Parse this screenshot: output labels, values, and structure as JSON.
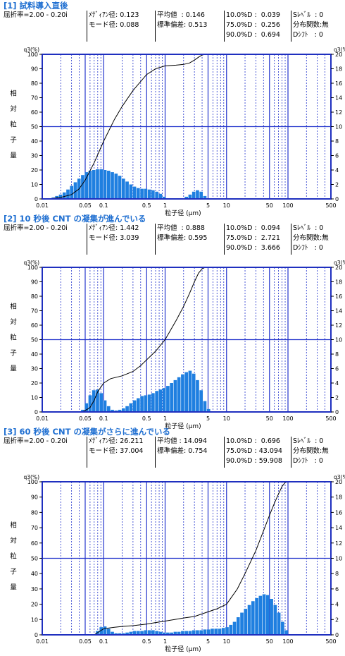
{
  "panels": [
    {
      "title": "[1] 試料導入直後",
      "info": {
        "refractive": "屈折率=2.00 - 0.20i",
        "median": "ﾒﾃﾞｨｱﾝ径: 0.123",
        "mode": "モード径: 0.088",
        "mean": "平均値  : 0.146",
        "stdev": "標準偏差: 0.513",
        "d10": "10.0%D :  0.039",
        "d75": "75.0%D :  0.256",
        "d90": "90.0%D :  0.694",
        "slevel": "Sﾚﾍﾞﾙ  : 0",
        "dist": "分布関数:無",
        "dshift": "Dｼﾌﾄ   : 0"
      }
    },
    {
      "title": "[2] 10 秒後   CNT の凝集が進んでいる",
      "info": {
        "refractive": "屈折率=2.00 - 0.20i",
        "median": "ﾒﾃﾞｨｱﾝ径: 1.442",
        "mode": "モード径: 3.039",
        "mean": "平均値  : 0.888",
        "stdev": "標準偏差: 0.595",
        "d10": "10.0%D :  0.094",
        "d75": "75.0%D :  2.721",
        "d90": "90.0%D :  3.666",
        "slevel": "Sﾚﾍﾞﾙ  : 0",
        "dist": "分布関数:無",
        "dshift": "Dｼﾌﾄ   : 0"
      }
    },
    {
      "title": "[3] 60 秒後   CNT の凝集がさらに進んでいる",
      "info": {
        "refractive": "屈折率=2.00 - 0.20i",
        "median": "ﾒﾃﾞｨｱﾝ径: 26.211",
        "mode": "モード径: 37.004",
        "mean": "平均値 : 14.094",
        "stdev": "標準偏差: 0.754",
        "d10": "10.0%D :  0.696",
        "d75": "75.0%D : 43.094",
        "d90": "90.0%D : 59.908",
        "slevel": "Sﾚﾍﾞﾙ  : 0",
        "dist": "分布関数:無",
        "dshift": "Dｼﾌﾄ   : 0"
      }
    }
  ],
  "colors": {
    "axis": "#1f2fbf",
    "bar": "#1f7fe0",
    "grid": "#2233cc",
    "title": "#1f6fd1"
  },
  "chart_data": [
    {
      "type": "bar",
      "left_label": "q3(%)",
      "right_label": "q3(%)",
      "ylabel": "相対粒子量",
      "xlabel": "粒子径 (μm)",
      "xscale": "log",
      "xlim": [
        0.01,
        500
      ],
      "ylim_left": [
        0,
        100
      ],
      "ylim_right": [
        0,
        20
      ],
      "x_ticks": [
        "0.01",
        "0.05",
        "0.1",
        "0.5",
        "1",
        "5",
        "10",
        "50",
        "100",
        "500"
      ],
      "y_ticks_left": [
        "0",
        "10",
        "20",
        "30",
        "40",
        "50",
        "60",
        "70",
        "80",
        "90",
        "100"
      ],
      "y_ticks_right": [
        "0",
        "2",
        "4",
        "6",
        "8",
        "10",
        "12",
        "14",
        "16",
        "18",
        "20"
      ],
      "bars": {
        "x": [
          0.0132,
          0.0152,
          0.0174,
          0.02,
          0.023,
          0.0264,
          0.0303,
          0.0348,
          0.04,
          0.0459,
          0.0528,
          0.0606,
          0.0696,
          0.08,
          0.0919,
          0.1056,
          0.1213,
          0.1394,
          0.1601,
          0.184,
          0.2113,
          0.2428,
          0.2789,
          0.3204,
          0.3681,
          0.4229,
          0.4858,
          0.5581,
          0.6412,
          0.7366,
          0.8462,
          0.9722,
          1.117,
          1.283,
          1.474,
          1.693,
          1.945,
          2.235,
          2.567,
          2.949,
          3.388,
          3.892,
          4.472
        ],
        "y": [
          0.1,
          0.2,
          0.4,
          0.6,
          0.9,
          1.3,
          1.8,
          2.3,
          2.8,
          3.3,
          3.7,
          3.9,
          4.0,
          4.1,
          4.1,
          4.0,
          3.9,
          3.7,
          3.5,
          3.2,
          2.8,
          2.4,
          2.0,
          1.7,
          1.5,
          1.4,
          1.4,
          1.3,
          1.2,
          1.0,
          0.7,
          0.3,
          0.1,
          0,
          0,
          0,
          0.1,
          0.3,
          0.6,
          1.0,
          1.2,
          1.0,
          0.4
        ]
      },
      "cumulative": {
        "x": [
          0.013,
          0.02,
          0.03,
          0.04,
          0.05,
          0.07,
          0.1,
          0.15,
          0.2,
          0.3,
          0.5,
          0.7,
          1.0,
          1.5,
          2.0,
          2.5,
          3.0,
          3.5,
          4.0,
          4.5,
          5.0
        ],
        "y": [
          0,
          1,
          3,
          7,
          13,
          25,
          40,
          55,
          64,
          75,
          86,
          90,
          92,
          92.5,
          93,
          94,
          96,
          98,
          99.5,
          100,
          100
        ]
      }
    },
    {
      "type": "bar",
      "left_label": "q3(%)",
      "right_label": "q3(%)",
      "ylabel": "相対粒子量",
      "xlabel": "粒子径 (μm)",
      "xscale": "log",
      "xlim": [
        0.01,
        500
      ],
      "ylim_left": [
        0,
        100
      ],
      "ylim_right": [
        0,
        20
      ],
      "x_ticks": [
        "0.01",
        "0.05",
        "0.1",
        "0.5",
        "1",
        "5",
        "10",
        "50",
        "100",
        "500"
      ],
      "y_ticks_left": [
        "0",
        "10",
        "20",
        "30",
        "40",
        "50",
        "60",
        "70",
        "80",
        "90",
        "100"
      ],
      "y_ticks_right": [
        "0",
        "2",
        "4",
        "6",
        "8",
        "10",
        "12",
        "14",
        "16",
        "18",
        "20"
      ],
      "bars": {
        "x": [
          0.0459,
          0.0528,
          0.0606,
          0.0696,
          0.08,
          0.0919,
          0.1056,
          0.1213,
          0.1394,
          0.1601,
          0.184,
          0.2113,
          0.2428,
          0.2789,
          0.3204,
          0.3681,
          0.4229,
          0.4858,
          0.5581,
          0.6412,
          0.7366,
          0.8462,
          0.9722,
          1.117,
          1.283,
          1.474,
          1.693,
          1.945,
          2.235,
          2.567,
          2.949,
          3.388,
          3.892,
          4.472,
          5.138
        ],
        "y": [
          0.3,
          1.2,
          2.3,
          3.0,
          3.1,
          2.6,
          1.6,
          0.8,
          0.3,
          0.2,
          0.3,
          0.5,
          0.8,
          1.2,
          1.6,
          1.9,
          2.2,
          2.3,
          2.4,
          2.6,
          2.9,
          3.1,
          3.3,
          3.6,
          4.0,
          4.4,
          4.8,
          5.2,
          5.5,
          5.7,
          5.3,
          4.4,
          3.0,
          1.5,
          0.4
        ]
      },
      "cumulative": {
        "x": [
          0.045,
          0.05,
          0.06,
          0.07,
          0.08,
          0.1,
          0.13,
          0.2,
          0.3,
          0.4,
          0.5,
          0.7,
          1.0,
          1.5,
          2.0,
          2.5,
          3.0,
          3.5,
          4.0,
          4.5,
          5.0
        ],
        "y": [
          0,
          1,
          3,
          8,
          14,
          20,
          23,
          25,
          28,
          32,
          36,
          42,
          50,
          63,
          73,
          82,
          90,
          96,
          99,
          100,
          100
        ]
      }
    },
    {
      "type": "bar",
      "left_label": "q3(%)",
      "right_label": "q3(%)",
      "ylabel": "相対粒子量",
      "xlabel": "粒子径 (μm)",
      "xscale": "log",
      "xlim": [
        0.01,
        500
      ],
      "ylim_left": [
        0,
        100
      ],
      "ylim_right": [
        0,
        20
      ],
      "x_ticks": [
        "0.01",
        "0.05",
        "0.1",
        "0.5",
        "1",
        "5",
        "10",
        "50",
        "100",
        "500"
      ],
      "y_ticks_left": [
        "0",
        "10",
        "20",
        "30",
        "40",
        "50",
        "60",
        "70",
        "80",
        "90",
        "100"
      ],
      "y_ticks_right": [
        "0",
        "2",
        "4",
        "6",
        "8",
        "10",
        "12",
        "14",
        "16",
        "18",
        "20"
      ],
      "bars": {
        "x": [
          0.08,
          0.0919,
          0.1056,
          0.1213,
          0.1394,
          0.1601,
          0.184,
          0.2113,
          0.2428,
          0.2789,
          0.3204,
          0.3681,
          0.4229,
          0.4858,
          0.5581,
          0.6412,
          0.7366,
          0.8462,
          0.9722,
          1.117,
          1.283,
          1.474,
          1.693,
          1.945,
          2.235,
          2.567,
          2.949,
          3.388,
          3.892,
          4.472,
          5.138,
          5.902,
          6.78,
          7.789,
          8.948,
          10.28,
          11.81,
          13.57,
          15.59,
          17.91,
          20.57,
          23.63,
          27.15,
          31.19,
          35.83,
          41.16,
          47.29,
          54.33,
          62.41,
          71.7,
          82.37,
          94.62
        ],
        "y": [
          0.5,
          1.0,
          1.1,
          0.8,
          0.4,
          0.2,
          0.2,
          0.2,
          0.3,
          0.4,
          0.5,
          0.5,
          0.5,
          0.6,
          0.6,
          0.6,
          0.5,
          0.4,
          0.3,
          0.3,
          0.3,
          0.4,
          0.4,
          0.5,
          0.5,
          0.5,
          0.6,
          0.6,
          0.6,
          0.7,
          0.7,
          0.8,
          0.8,
          0.8,
          0.9,
          1.0,
          1.3,
          1.7,
          2.3,
          2.9,
          3.4,
          3.9,
          4.4,
          4.8,
          5.1,
          5.3,
          5.2,
          4.7,
          3.9,
          2.9,
          1.7,
          0.6
        ]
      },
      "cumulative": {
        "x": [
          0.07,
          0.1,
          0.15,
          0.2,
          0.3,
          0.5,
          0.7,
          1.0,
          2.0,
          3.0,
          5.0,
          7.0,
          10,
          15,
          20,
          30,
          40,
          50,
          60,
          70,
          80,
          90,
          100
        ],
        "y": [
          0,
          4,
          5,
          5.5,
          6,
          7,
          8,
          9,
          11,
          12,
          15,
          17,
          20,
          30,
          40,
          55,
          68,
          78,
          86,
          92,
          97,
          99.5,
          100
        ]
      }
    }
  ]
}
